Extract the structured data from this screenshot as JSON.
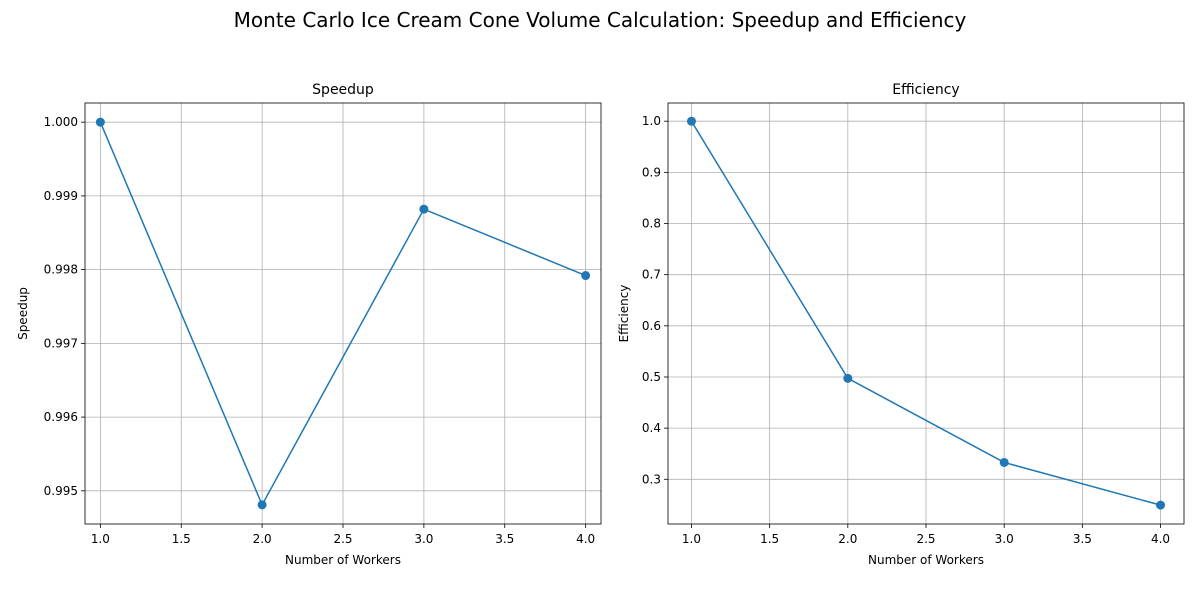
{
  "figure": {
    "title": "Monte Carlo Ice Cream Cone Volume Calculation: Speedup and Efficiency"
  },
  "chart_data": [
    {
      "type": "line",
      "title": "Speedup",
      "xlabel": "Number of Workers",
      "ylabel": "Speedup",
      "x": [
        1.0,
        2.0,
        3.0,
        4.0
      ],
      "series": [
        {
          "values": [
            1.0,
            0.99481,
            0.99882,
            0.99792
          ]
        }
      ],
      "xlim": [
        0.905,
        4.095
      ],
      "ylim": [
        0.99455,
        1.00026
      ],
      "xticks": [
        1.0,
        1.5,
        2.0,
        2.5,
        3.0,
        3.5,
        4.0
      ],
      "xtick_labels": [
        "1.0",
        "1.5",
        "2.0",
        "2.5",
        "3.0",
        "3.5",
        "4.0"
      ],
      "yticks": [
        0.995,
        0.996,
        0.997,
        0.998,
        0.999,
        1.0
      ],
      "ytick_labels": [
        "0.995",
        "0.996",
        "0.997",
        "0.998",
        "0.999",
        "1.000"
      ],
      "grid": true,
      "color": "#1f77b4",
      "marker": "circle"
    },
    {
      "type": "line",
      "title": "Efficiency",
      "xlabel": "Number of Workers",
      "ylabel": "Efficiency",
      "x": [
        1.0,
        2.0,
        3.0,
        4.0
      ],
      "series": [
        {
          "values": [
            1.0,
            0.4974,
            0.3329,
            0.2495
          ]
        }
      ],
      "xlim": [
        0.85,
        4.15
      ],
      "ylim": [
        0.2126,
        1.0356
      ],
      "xticks": [
        1.0,
        1.5,
        2.0,
        2.5,
        3.0,
        3.5,
        4.0
      ],
      "xtick_labels": [
        "1.0",
        "1.5",
        "2.0",
        "2.5",
        "3.0",
        "3.5",
        "4.0"
      ],
      "yticks": [
        0.3,
        0.4,
        0.5,
        0.6,
        0.7,
        0.8,
        0.9,
        1.0
      ],
      "ytick_labels": [
        "0.3",
        "0.4",
        "0.5",
        "0.6",
        "0.7",
        "0.8",
        "0.9",
        "1.0"
      ],
      "grid": true,
      "color": "#1f77b4",
      "marker": "circle"
    }
  ]
}
